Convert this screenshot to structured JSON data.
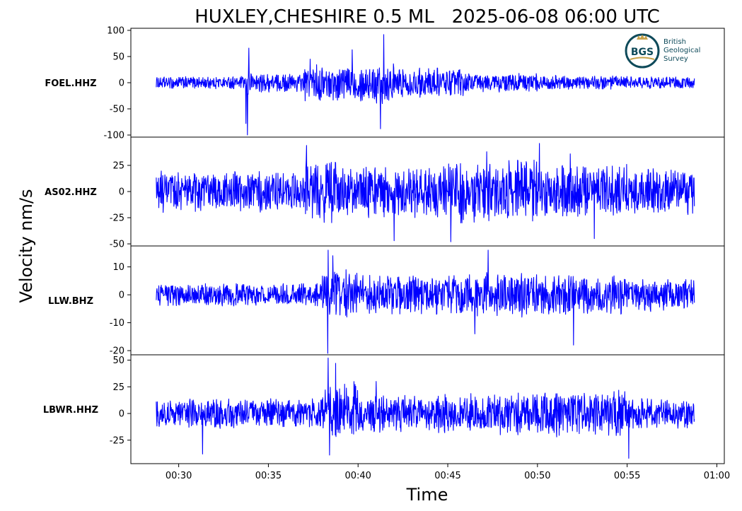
{
  "header": {
    "title": "HUXLEY,CHESHIRE 0.5 ML   2025-06-08 06:00 UTC"
  },
  "logo": {
    "abbr": "BGS",
    "lines": [
      "British",
      "Geological",
      "Survey"
    ]
  },
  "colors": {
    "trace": "#0000ff",
    "axis": "#000000",
    "logo_teal": "#0e4a5a",
    "logo_gold": "#c7a24a"
  },
  "chart_data": {
    "type": "line",
    "title": "HUXLEY,CHESHIRE 0.5 ML   2025-06-08 06:00 UTC",
    "xlabel": "Time",
    "ylabel": "Velocity nm/s",
    "xlim": [
      "00:27:20",
      "01:00:25"
    ],
    "x_ticks": [
      "00:30",
      "00:35",
      "00:40",
      "00:45",
      "00:50",
      "00:55",
      "01:00"
    ],
    "data_range": [
      "00:28:45",
      "00:58:45"
    ],
    "grid": false,
    "series": [
      {
        "name": "FOEL.HHZ",
        "ylim": [
          -104,
          104
        ],
        "yticks": [
          -100,
          -50,
          0,
          50,
          100
        ],
        "ytick_labels": [
          "-100",
          "-50",
          "0",
          "50",
          "100"
        ],
        "segments": [
          {
            "start": "00:28:45",
            "amp": 12
          },
          {
            "start": "00:33:50",
            "amp": 30
          },
          {
            "start": "00:34:05",
            "amp": 18
          },
          {
            "start": "00:37:00",
            "amp": 35
          },
          {
            "start": "00:40:30",
            "amp": 40
          },
          {
            "start": "00:42:00",
            "amp": 28
          },
          {
            "start": "00:46:00",
            "amp": 18
          },
          {
            "start": "00:50:00",
            "amp": 14
          },
          {
            "start": "00:55:00",
            "amp": 12
          }
        ],
        "peaks": [
          {
            "t": "00:33:50",
            "v": -100
          },
          {
            "t": "00:33:55",
            "v": 66
          },
          {
            "t": "00:33:45",
            "v": -78
          },
          {
            "t": "00:41:26",
            "v": 92
          },
          {
            "t": "00:41:15",
            "v": -88
          },
          {
            "t": "00:37:20",
            "v": 45
          },
          {
            "t": "00:39:40",
            "v": 63
          }
        ]
      },
      {
        "name": "AS02.HHZ",
        "ylim": [
          -52,
          52
        ],
        "yticks": [
          -50,
          -25,
          0,
          25
        ],
        "ytick_labels": [
          "-50",
          "-25",
          "0",
          "25"
        ],
        "segments": [
          {
            "start": "00:28:45",
            "amp": 20
          },
          {
            "start": "00:37:00",
            "amp": 30
          },
          {
            "start": "00:39:00",
            "amp": 25
          },
          {
            "start": "00:45:00",
            "amp": 30
          },
          {
            "start": "00:50:00",
            "amp": 26
          },
          {
            "start": "00:55:00",
            "amp": 22
          }
        ],
        "peaks": [
          {
            "t": "00:37:08",
            "v": 44
          },
          {
            "t": "00:42:00",
            "v": -47
          },
          {
            "t": "00:45:10",
            "v": -48
          },
          {
            "t": "00:50:07",
            "v": 46
          },
          {
            "t": "00:51:50",
            "v": 36
          },
          {
            "t": "00:53:10",
            "v": -45
          },
          {
            "t": "00:47:10",
            "v": 38
          }
        ]
      },
      {
        "name": "LLW.BHZ",
        "ylim": [
          -21.5,
          17.5
        ],
        "yticks": [
          -20,
          -10,
          0,
          10
        ],
        "ytick_labels": [
          "-20",
          "-10",
          "0",
          "10"
        ],
        "segments": [
          {
            "start": "00:28:45",
            "amp": 4
          },
          {
            "start": "00:38:00",
            "amp": 9
          },
          {
            "start": "00:40:00",
            "amp": 7
          },
          {
            "start": "00:45:00",
            "amp": 8
          },
          {
            "start": "00:50:00",
            "amp": 7
          },
          {
            "start": "00:55:00",
            "amp": 6
          }
        ],
        "peaks": [
          {
            "t": "00:38:18",
            "v": -21
          },
          {
            "t": "00:38:20",
            "v": 16
          },
          {
            "t": "00:38:35",
            "v": 14
          },
          {
            "t": "00:47:15",
            "v": 16
          },
          {
            "t": "00:52:00",
            "v": -18
          },
          {
            "t": "00:46:30",
            "v": -14
          }
        ]
      },
      {
        "name": "LBWR.HHZ",
        "ylim": [
          -47,
          55
        ],
        "yticks": [
          -25,
          0,
          25,
          50
        ],
        "ytick_labels": [
          "-25",
          "0",
          "25",
          "50"
        ],
        "segments": [
          {
            "start": "00:28:45",
            "amp": 14
          },
          {
            "start": "00:38:00",
            "amp": 30
          },
          {
            "start": "00:40:00",
            "amp": 18
          },
          {
            "start": "00:46:00",
            "amp": 20
          },
          {
            "start": "00:50:00",
            "amp": 22
          },
          {
            "start": "00:55:00",
            "amp": 14
          }
        ],
        "peaks": [
          {
            "t": "00:38:20",
            "v": 52
          },
          {
            "t": "00:38:25",
            "v": -39
          },
          {
            "t": "00:38:45",
            "v": 47
          },
          {
            "t": "00:55:05",
            "v": -42
          },
          {
            "t": "00:31:20",
            "v": -38
          },
          {
            "t": "00:41:00",
            "v": 30
          }
        ]
      }
    ]
  }
}
